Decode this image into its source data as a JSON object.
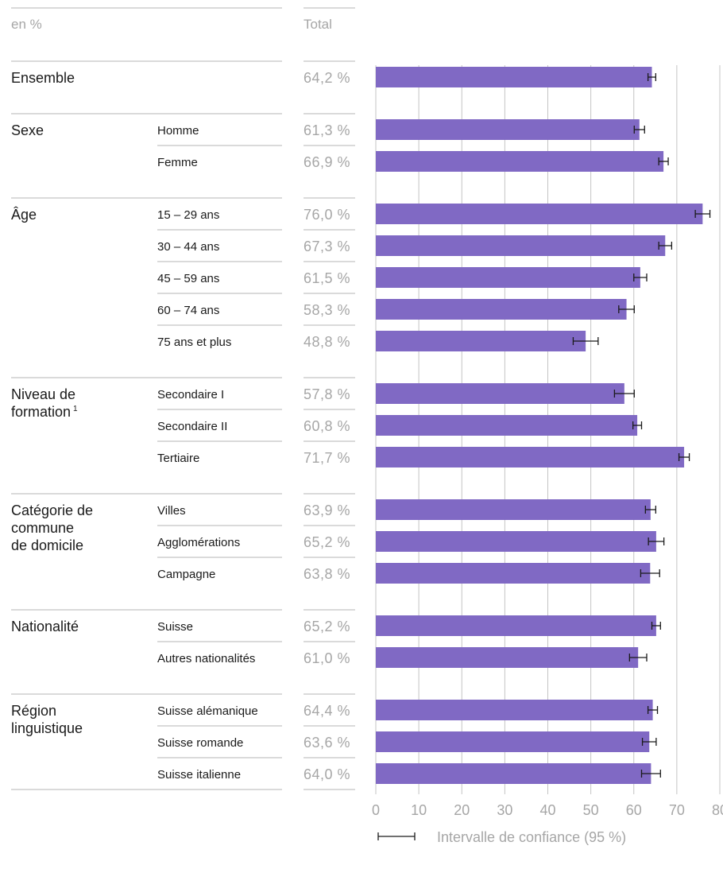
{
  "chart_data": {
    "type": "bar",
    "orientation": "horizontal",
    "unit_label": "en %",
    "total_header": "Total",
    "xlim": [
      0,
      80
    ],
    "xticks": [
      0,
      10,
      20,
      30,
      40,
      50,
      60,
      70,
      80
    ],
    "grid": true,
    "bar_color": "#8069c4",
    "legend": {
      "label": "Intervalle de confiance (95 %)",
      "placement": "bottom"
    },
    "groups": [
      {
        "name": "Ensemble",
        "name_lines": [
          "Ensemble"
        ],
        "rows": [
          {
            "label": "",
            "value": 64.2,
            "ci": [
              63.3,
              65.1
            ],
            "total_label": "64,2 %"
          }
        ]
      },
      {
        "name": "Sexe",
        "name_lines": [
          "Sexe"
        ],
        "rows": [
          {
            "label": "Homme",
            "value": 61.3,
            "ci": [
              60.1,
              62.5
            ],
            "total_label": "61,3 %"
          },
          {
            "label": "Femme",
            "value": 66.9,
            "ci": [
              65.8,
              68.0
            ],
            "total_label": "66,9 %"
          }
        ]
      },
      {
        "name": "Âge",
        "name_lines": [
          "Âge"
        ],
        "rows": [
          {
            "label": "15 – 29 ans",
            "value": 76.0,
            "ci": [
              74.3,
              77.7
            ],
            "total_label": "76,0 %"
          },
          {
            "label": "30 – 44 ans",
            "value": 67.3,
            "ci": [
              65.8,
              68.8
            ],
            "total_label": "67,3 %"
          },
          {
            "label": "45 – 59 ans",
            "value": 61.5,
            "ci": [
              60.0,
              63.0
            ],
            "total_label": "61,5 %"
          },
          {
            "label": "60 – 74 ans",
            "value": 58.3,
            "ci": [
              56.5,
              60.1
            ],
            "total_label": "58,3 %"
          },
          {
            "label": "75 ans et plus",
            "value": 48.8,
            "ci": [
              45.9,
              51.7
            ],
            "total_label": "48,8 %"
          }
        ]
      },
      {
        "name": "Niveau de formation",
        "name_lines": [
          "Niveau de",
          "formation"
        ],
        "footnote": "1",
        "rows": [
          {
            "label": "Secondaire I",
            "value": 57.8,
            "ci": [
              55.5,
              60.1
            ],
            "total_label": "57,8 %"
          },
          {
            "label": "Secondaire II",
            "value": 60.8,
            "ci": [
              59.8,
              61.8
            ],
            "total_label": "60,8 %"
          },
          {
            "label": "Tertiaire",
            "value": 71.7,
            "ci": [
              70.5,
              72.9
            ],
            "total_label": "71,7 %"
          }
        ]
      },
      {
        "name": "Catégorie de commune de domicile",
        "name_lines": [
          "Catégorie de",
          "commune",
          "de domicile"
        ],
        "rows": [
          {
            "label": "Villes",
            "value": 63.9,
            "ci": [
              62.7,
              65.1
            ],
            "total_label": "63,9 %"
          },
          {
            "label": "Agglomérations",
            "value": 65.2,
            "ci": [
              63.4,
              67.0
            ],
            "total_label": "65,2 %"
          },
          {
            "label": "Campagne",
            "value": 63.8,
            "ci": [
              61.6,
              66.0
            ],
            "total_label": "63,8 %"
          }
        ]
      },
      {
        "name": "Nationalité",
        "name_lines": [
          "Nationalité"
        ],
        "rows": [
          {
            "label": "Suisse",
            "value": 65.2,
            "ci": [
              64.2,
              66.2
            ],
            "total_label": "65,2 %"
          },
          {
            "label": "Autres nationalités",
            "value": 61.0,
            "ci": [
              59.0,
              63.0
            ],
            "total_label": "61,0 %"
          }
        ]
      },
      {
        "name": "Région linguistique",
        "name_lines": [
          "Région",
          "linguistique"
        ],
        "rows": [
          {
            "label": "Suisse alémanique",
            "value": 64.4,
            "ci": [
              63.3,
              65.5
            ],
            "total_label": "64,4 %"
          },
          {
            "label": "Suisse romande",
            "value": 63.6,
            "ci": [
              62.0,
              65.2
            ],
            "total_label": "63,6 %"
          },
          {
            "label": "Suisse italienne",
            "value": 64.0,
            "ci": [
              61.8,
              66.2
            ],
            "total_label": "64,0 %"
          }
        ]
      }
    ]
  }
}
